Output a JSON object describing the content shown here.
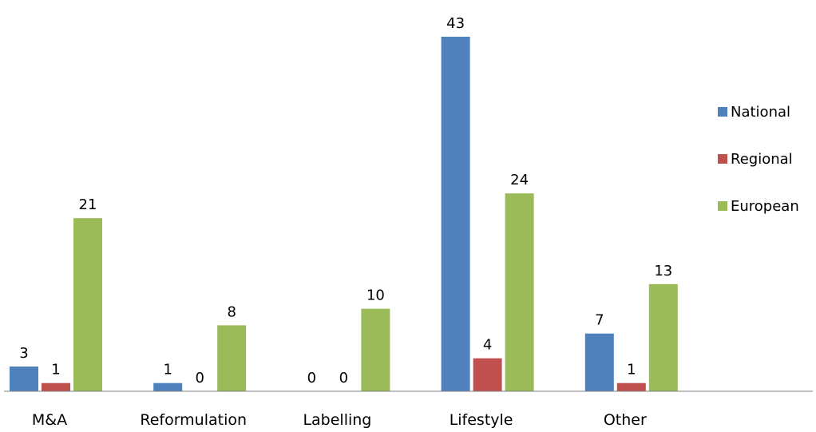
{
  "chart_data": {
    "type": "bar",
    "categories": [
      "M&A",
      "Reformulation",
      "Labelling",
      "Lifestyle",
      "Other"
    ],
    "series": [
      {
        "name": "National",
        "values": [
          3,
          1,
          0,
          43,
          7
        ],
        "color": "#4f81bd"
      },
      {
        "name": "Regional",
        "values": [
          1,
          0,
          0,
          4,
          1
        ],
        "color": "#c0504d"
      },
      {
        "name": "European",
        "values": [
          21,
          8,
          10,
          24,
          13
        ],
        "color": "#9bbb59"
      }
    ],
    "ylim": [
      0,
      43
    ],
    "grid": false,
    "legend_position": "right",
    "data_labels": true
  }
}
